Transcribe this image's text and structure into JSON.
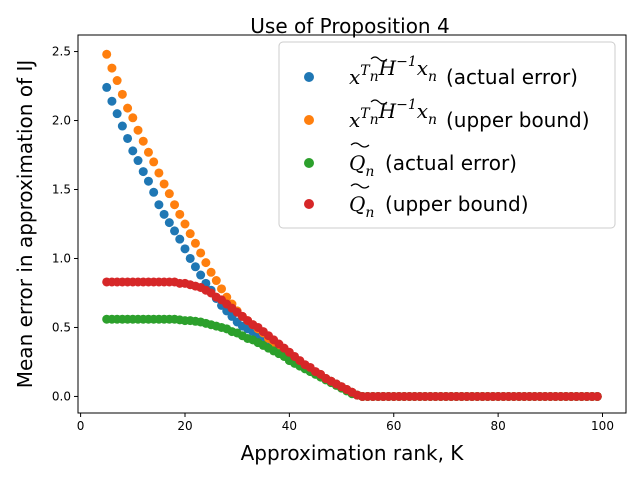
{
  "chart_data": {
    "type": "scatter",
    "title": "Use of Proposition 4",
    "xlabel": "Approximation rank, K",
    "ylabel": "Mean error in approximation of IJ",
    "xlim": [
      -0.5,
      104.5
    ],
    "ylim": [
      -0.12,
      2.62
    ],
    "xticks": [
      0,
      20,
      40,
      60,
      80,
      100
    ],
    "yticks": [
      0.0,
      0.5,
      1.0,
      1.5,
      2.0,
      2.5
    ],
    "xtick_labels": [
      "0",
      "20",
      "40",
      "60",
      "80",
      "100"
    ],
    "ytick_labels": [
      "0.0",
      "0.5",
      "1.0",
      "1.5",
      "2.0",
      "2.5"
    ],
    "legend_position": "upper right",
    "series": [
      {
        "name": "x_n^T H^-1 x_n (actual error)",
        "legend_main": "x",
        "legend_rest": "(actual error)",
        "color": "#1f77b4",
        "x": [
          5,
          6,
          7,
          8,
          9,
          10,
          11,
          12,
          13,
          14,
          15,
          16,
          17,
          18,
          19,
          20,
          21,
          22,
          23,
          24,
          25,
          26,
          27,
          28,
          29,
          30,
          31,
          32,
          33,
          34,
          35,
          36,
          37,
          38,
          39,
          40,
          41,
          42,
          43,
          44,
          45,
          46,
          47,
          48,
          49,
          50,
          51,
          52,
          53,
          54,
          55,
          56,
          57,
          58,
          59,
          60,
          61,
          62,
          63,
          64,
          65,
          66,
          67,
          68,
          69,
          70,
          71,
          72,
          73,
          74,
          75,
          76,
          77,
          78,
          79,
          80,
          81,
          82,
          83,
          84,
          85,
          86,
          87,
          88,
          89,
          90,
          91,
          92,
          93,
          94,
          95,
          96,
          97,
          98,
          99
        ],
        "y": [
          2.24,
          2.14,
          2.05,
          1.96,
          1.87,
          1.78,
          1.71,
          1.63,
          1.56,
          1.48,
          1.39,
          1.32,
          1.26,
          1.2,
          1.14,
          1.07,
          1.0,
          0.94,
          0.88,
          0.82,
          0.77,
          0.71,
          0.66,
          0.62,
          0.58,
          0.54,
          0.51,
          0.49,
          0.47,
          0.44,
          0.42,
          0.39,
          0.36,
          0.33,
          0.31,
          0.28,
          0.26,
          0.24,
          0.21,
          0.19,
          0.17,
          0.15,
          0.13,
          0.11,
          0.09,
          0.07,
          0.05,
          0.03,
          0.01,
          0.0,
          0.0,
          0.0,
          0.0,
          0.0,
          0.0,
          0.0,
          0.0,
          0.0,
          0.0,
          0.0,
          0.0,
          0.0,
          0.0,
          0.0,
          0.0,
          0.0,
          0.0,
          0.0,
          0.0,
          0.0,
          0.0,
          0.0,
          0.0,
          0.0,
          0.0,
          0.0,
          0.0,
          0.0,
          0.0,
          0.0,
          0.0,
          0.0,
          0.0,
          0.0,
          0.0,
          0.0,
          0.0,
          0.0,
          0.0,
          0.0,
          0.0,
          0.0,
          0.0,
          0.0,
          0.0
        ]
      },
      {
        "name": "x_n^T H^-1 x_n (upper bound)",
        "legend_main": "x",
        "legend_rest": "(upper bound)",
        "color": "#ff7f0e",
        "x": [
          5,
          6,
          7,
          8,
          9,
          10,
          11,
          12,
          13,
          14,
          15,
          16,
          17,
          18,
          19,
          20,
          21,
          22,
          23,
          24,
          25,
          26,
          27,
          28,
          29,
          30,
          31,
          32,
          33,
          34,
          35,
          36,
          37,
          38,
          39,
          40,
          41,
          42,
          43,
          44,
          45,
          46,
          47,
          48,
          49,
          50,
          51,
          52,
          53,
          54,
          55,
          56,
          57,
          58,
          59,
          60,
          61,
          62,
          63,
          64,
          65,
          66,
          67,
          68,
          69,
          70,
          71,
          72,
          73,
          74,
          75,
          76,
          77,
          78,
          79,
          80,
          81,
          82,
          83,
          84,
          85,
          86,
          87,
          88,
          89,
          90,
          91,
          92,
          93,
          94,
          95,
          96,
          97,
          98,
          99
        ],
        "y": [
          2.48,
          2.38,
          2.29,
          2.19,
          2.09,
          2.02,
          1.93,
          1.85,
          1.77,
          1.7,
          1.62,
          1.54,
          1.47,
          1.39,
          1.32,
          1.25,
          1.18,
          1.11,
          1.04,
          0.97,
          0.9,
          0.84,
          0.78,
          0.72,
          0.67,
          0.62,
          0.58,
          0.55,
          0.52,
          0.49,
          0.46,
          0.42,
          0.39,
          0.36,
          0.33,
          0.3,
          0.27,
          0.25,
          0.22,
          0.2,
          0.17,
          0.15,
          0.13,
          0.11,
          0.09,
          0.07,
          0.05,
          0.03,
          0.01,
          0.0,
          0.0,
          0.0,
          0.0,
          0.0,
          0.0,
          0.0,
          0.0,
          0.0,
          0.0,
          0.0,
          0.0,
          0.0,
          0.0,
          0.0,
          0.0,
          0.0,
          0.0,
          0.0,
          0.0,
          0.0,
          0.0,
          0.0,
          0.0,
          0.0,
          0.0,
          0.0,
          0.0,
          0.0,
          0.0,
          0.0,
          0.0,
          0.0,
          0.0,
          0.0,
          0.0,
          0.0,
          0.0,
          0.0,
          0.0,
          0.0,
          0.0,
          0.0,
          0.0,
          0.0,
          0.0
        ]
      },
      {
        "name": "Q_n (actual error)",
        "legend_main": "Q",
        "legend_rest": "(actual error)",
        "color": "#2ca02c",
        "x": [
          5,
          6,
          7,
          8,
          9,
          10,
          11,
          12,
          13,
          14,
          15,
          16,
          17,
          18,
          19,
          20,
          21,
          22,
          23,
          24,
          25,
          26,
          27,
          28,
          29,
          30,
          31,
          32,
          33,
          34,
          35,
          36,
          37,
          38,
          39,
          40,
          41,
          42,
          43,
          44,
          45,
          46,
          47,
          48,
          49,
          50,
          51,
          52,
          53,
          54,
          55,
          56,
          57,
          58,
          59,
          60,
          61,
          62,
          63,
          64,
          65,
          66,
          67,
          68,
          69,
          70,
          71,
          72,
          73,
          74,
          75,
          76,
          77,
          78,
          79,
          80,
          81,
          82,
          83,
          84,
          85,
          86,
          87,
          88,
          89,
          90,
          91,
          92,
          93,
          94,
          95,
          96,
          97,
          98,
          99
        ],
        "y": [
          0.56,
          0.56,
          0.56,
          0.56,
          0.56,
          0.56,
          0.56,
          0.56,
          0.56,
          0.56,
          0.56,
          0.56,
          0.56,
          0.56,
          0.555,
          0.55,
          0.55,
          0.545,
          0.54,
          0.53,
          0.52,
          0.51,
          0.5,
          0.49,
          0.47,
          0.46,
          0.44,
          0.42,
          0.41,
          0.39,
          0.37,
          0.35,
          0.33,
          0.31,
          0.29,
          0.26,
          0.24,
          0.22,
          0.2,
          0.18,
          0.16,
          0.14,
          0.12,
          0.1,
          0.08,
          0.06,
          0.04,
          0.02,
          0.01,
          0.0,
          0.0,
          0.0,
          0.0,
          0.0,
          0.0,
          0.0,
          0.0,
          0.0,
          0.0,
          0.0,
          0.0,
          0.0,
          0.0,
          0.0,
          0.0,
          0.0,
          0.0,
          0.0,
          0.0,
          0.0,
          0.0,
          0.0,
          0.0,
          0.0,
          0.0,
          0.0,
          0.0,
          0.0,
          0.0,
          0.0,
          0.0,
          0.0,
          0.0,
          0.0,
          0.0,
          0.0,
          0.0,
          0.0,
          0.0,
          0.0,
          0.0,
          0.0,
          0.0,
          0.0,
          0.0
        ]
      },
      {
        "name": "Q_n (upper bound)",
        "legend_main": "Q",
        "legend_rest": "(upper bound)",
        "color": "#d62728",
        "x": [
          5,
          6,
          7,
          8,
          9,
          10,
          11,
          12,
          13,
          14,
          15,
          16,
          17,
          18,
          19,
          20,
          21,
          22,
          23,
          24,
          25,
          26,
          27,
          28,
          29,
          30,
          31,
          32,
          33,
          34,
          35,
          36,
          37,
          38,
          39,
          40,
          41,
          42,
          43,
          44,
          45,
          46,
          47,
          48,
          49,
          50,
          51,
          52,
          53,
          54,
          55,
          56,
          57,
          58,
          59,
          60,
          61,
          62,
          63,
          64,
          65,
          66,
          67,
          68,
          69,
          70,
          71,
          72,
          73,
          74,
          75,
          76,
          77,
          78,
          79,
          80,
          81,
          82,
          83,
          84,
          85,
          86,
          87,
          88,
          89,
          90,
          91,
          92,
          93,
          94,
          95,
          96,
          97,
          98,
          99
        ],
        "y": [
          0.83,
          0.83,
          0.83,
          0.83,
          0.83,
          0.83,
          0.83,
          0.83,
          0.83,
          0.83,
          0.83,
          0.83,
          0.83,
          0.83,
          0.82,
          0.82,
          0.81,
          0.8,
          0.79,
          0.77,
          0.75,
          0.72,
          0.7,
          0.67,
          0.64,
          0.61,
          0.58,
          0.55,
          0.52,
          0.5,
          0.47,
          0.44,
          0.41,
          0.38,
          0.35,
          0.32,
          0.29,
          0.26,
          0.23,
          0.21,
          0.18,
          0.16,
          0.13,
          0.11,
          0.09,
          0.07,
          0.05,
          0.03,
          0.01,
          0.0,
          0.0,
          0.0,
          0.0,
          0.0,
          0.0,
          0.0,
          0.0,
          0.0,
          0.0,
          0.0,
          0.0,
          0.0,
          0.0,
          0.0,
          0.0,
          0.0,
          0.0,
          0.0,
          0.0,
          0.0,
          0.0,
          0.0,
          0.0,
          0.0,
          0.0,
          0.0,
          0.0,
          0.0,
          0.0,
          0.0,
          0.0,
          0.0,
          0.0,
          0.0,
          0.0,
          0.0,
          0.0,
          0.0,
          0.0,
          0.0,
          0.0,
          0.0,
          0.0,
          0.0,
          0.0
        ]
      }
    ]
  }
}
